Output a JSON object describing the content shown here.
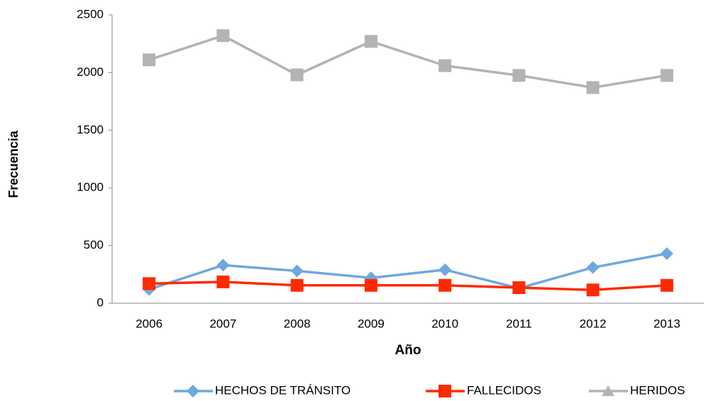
{
  "chart_data": {
    "type": "line",
    "categories": [
      "2006",
      "2007",
      "2008",
      "2009",
      "2010",
      "2011",
      "2012",
      "2013"
    ],
    "series": [
      {
        "name": "HECHOS DE TRÁNSITO",
        "color": "#6fa8dc",
        "values": [
          120,
          330,
          280,
          220,
          290,
          130,
          310,
          430
        ]
      },
      {
        "name": "FALLECIDOS",
        "color": "#ff2a00",
        "values": [
          170,
          185,
          155,
          155,
          155,
          135,
          115,
          155
        ]
      },
      {
        "name": "HERIDOS",
        "color": "#b3b3b3",
        "values": [
          2110,
          2320,
          1980,
          2270,
          2060,
          1975,
          1870,
          1975
        ]
      }
    ],
    "xlabel": "Año",
    "ylabel": "Frecuencia",
    "ylim": [
      0,
      2500
    ],
    "yticks": [
      0,
      500,
      1000,
      1500,
      2000,
      2500
    ],
    "grid": false,
    "legend": "bottom"
  }
}
